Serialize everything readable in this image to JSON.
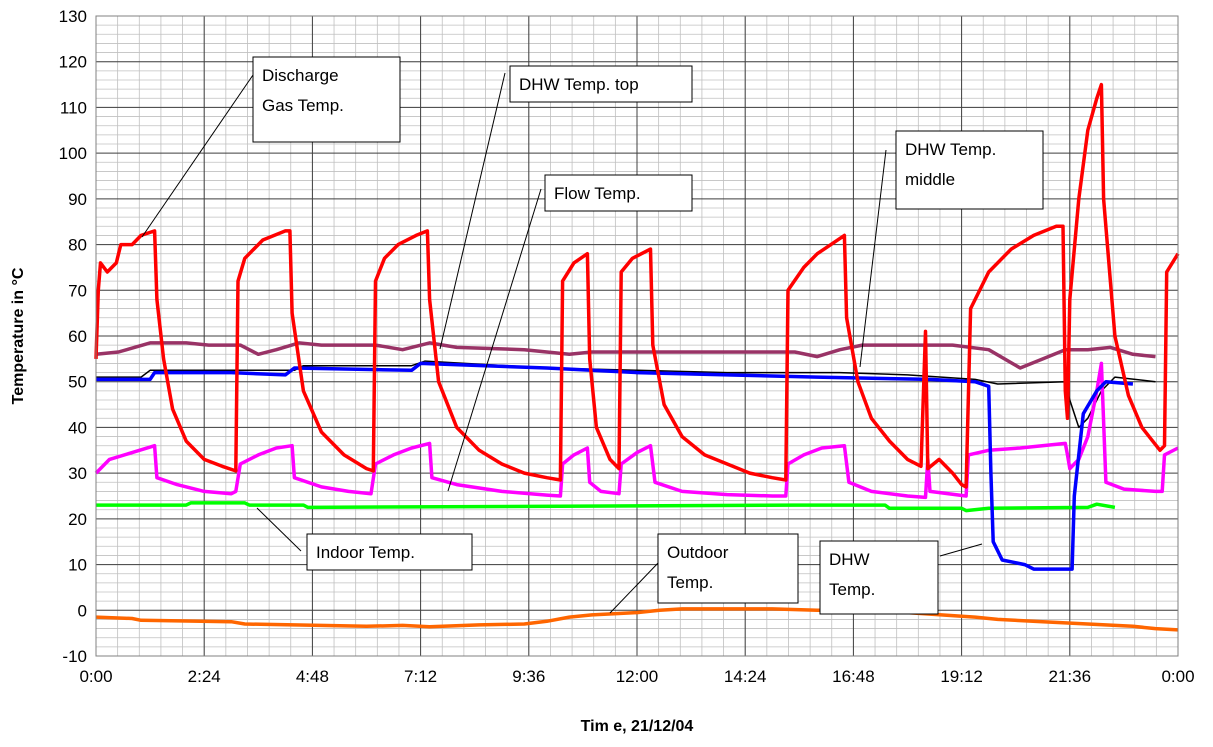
{
  "chart_data": {
    "type": "line",
    "title": "",
    "xlabel": "Tim e, 21/12/04",
    "ylabel": "Temperature in °C",
    "xlim_hours": [
      0,
      24
    ],
    "xtick_labels": [
      "0:00",
      "2:24",
      "4:48",
      "7:12",
      "9:36",
      "12:00",
      "14:24",
      "16:48",
      "19:12",
      "21:36",
      "0:00"
    ],
    "ylim": [
      -10,
      130
    ],
    "yticks": [
      -10,
      0,
      10,
      20,
      30,
      40,
      50,
      60,
      70,
      80,
      90,
      100,
      110,
      120,
      130
    ],
    "grid": true,
    "series": [
      {
        "name": "Discharge Gas Temp.",
        "color": "#ff0000",
        "points": [
          [
            0.0,
            55
          ],
          [
            0.05,
            70
          ],
          [
            0.1,
            76
          ],
          [
            0.25,
            74
          ],
          [
            0.45,
            76
          ],
          [
            0.55,
            80
          ],
          [
            0.8,
            80
          ],
          [
            1.0,
            82
          ],
          [
            1.3,
            83
          ],
          [
            1.35,
            68
          ],
          [
            1.5,
            55
          ],
          [
            1.7,
            44
          ],
          [
            2.0,
            37
          ],
          [
            2.4,
            33
          ],
          [
            2.8,
            31.5
          ],
          [
            3.1,
            30.5
          ],
          [
            3.15,
            72
          ],
          [
            3.3,
            77
          ],
          [
            3.7,
            81
          ],
          [
            4.2,
            83
          ],
          [
            4.3,
            83
          ],
          [
            4.35,
            65
          ],
          [
            4.6,
            48
          ],
          [
            5.0,
            39
          ],
          [
            5.5,
            34
          ],
          [
            6.0,
            31
          ],
          [
            6.15,
            30.5
          ],
          [
            6.2,
            72
          ],
          [
            6.4,
            77
          ],
          [
            6.7,
            80
          ],
          [
            7.1,
            82
          ],
          [
            7.35,
            83
          ],
          [
            7.4,
            68
          ],
          [
            7.6,
            50
          ],
          [
            8.0,
            40
          ],
          [
            8.5,
            35
          ],
          [
            9.0,
            32
          ],
          [
            9.5,
            30
          ],
          [
            10.0,
            29
          ],
          [
            10.3,
            28.5
          ],
          [
            10.35,
            72
          ],
          [
            10.6,
            76
          ],
          [
            10.9,
            78
          ],
          [
            10.95,
            55
          ],
          [
            11.1,
            40
          ],
          [
            11.4,
            33
          ],
          [
            11.6,
            31
          ],
          [
            11.65,
            74
          ],
          [
            11.9,
            77
          ],
          [
            12.1,
            78
          ],
          [
            12.3,
            79
          ],
          [
            12.35,
            58
          ],
          [
            12.6,
            45
          ],
          [
            13.0,
            38
          ],
          [
            13.5,
            34
          ],
          [
            14.0,
            32
          ],
          [
            14.5,
            30
          ],
          [
            15.0,
            29
          ],
          [
            15.3,
            28.5
          ],
          [
            15.35,
            70
          ],
          [
            15.7,
            75
          ],
          [
            16.0,
            78
          ],
          [
            16.3,
            80
          ],
          [
            16.6,
            82
          ],
          [
            16.65,
            64
          ],
          [
            16.9,
            50
          ],
          [
            17.2,
            42
          ],
          [
            17.6,
            37
          ],
          [
            18.0,
            33
          ],
          [
            18.3,
            31.5
          ],
          [
            18.4,
            61
          ],
          [
            18.45,
            31
          ],
          [
            18.7,
            33
          ],
          [
            19.0,
            30
          ],
          [
            19.2,
            27.5
          ],
          [
            19.3,
            27
          ],
          [
            19.4,
            66
          ],
          [
            19.8,
            74
          ],
          [
            20.3,
            79
          ],
          [
            20.8,
            82
          ],
          [
            21.3,
            84
          ],
          [
            21.45,
            84
          ],
          [
            21.5,
            48
          ],
          [
            21.55,
            42
          ],
          [
            21.6,
            68
          ],
          [
            21.8,
            90
          ],
          [
            22.0,
            105
          ],
          [
            22.2,
            112
          ],
          [
            22.3,
            115
          ],
          [
            22.35,
            90
          ],
          [
            22.6,
            60
          ],
          [
            22.9,
            47
          ],
          [
            23.2,
            40
          ],
          [
            23.6,
            35
          ],
          [
            23.7,
            36
          ],
          [
            23.75,
            74
          ],
          [
            24.0,
            78
          ],
          [
            24.5,
            81
          ],
          [
            24.8,
            83
          ],
          [
            25.0,
            83
          ]
        ]
      },
      {
        "name": "DHW Temp. top",
        "color": "#0000ff",
        "points": [
          [
            0.0,
            50.5
          ],
          [
            1.2,
            50.5
          ],
          [
            1.3,
            52
          ],
          [
            3.0,
            52
          ],
          [
            4.2,
            51.5
          ],
          [
            4.4,
            53
          ],
          [
            7.0,
            52.5
          ],
          [
            7.2,
            54
          ],
          [
            10.0,
            53
          ],
          [
            12.0,
            52
          ],
          [
            14.0,
            51.5
          ],
          [
            16.0,
            51
          ],
          [
            18.5,
            50.5
          ],
          [
            19.5,
            50
          ],
          [
            19.8,
            49
          ],
          [
            19.85,
            30
          ],
          [
            19.9,
            15
          ],
          [
            20.1,
            11
          ],
          [
            20.6,
            10
          ],
          [
            20.8,
            9
          ],
          [
            21.5,
            9
          ],
          [
            21.65,
            9
          ],
          [
            21.7,
            25
          ],
          [
            21.9,
            43
          ],
          [
            22.2,
            48
          ],
          [
            22.4,
            50
          ],
          [
            23.0,
            49.5
          ],
          [
            25.0,
            49.5
          ]
        ]
      },
      {
        "name": "DHW Temp. middle",
        "color": "#993366",
        "points": [
          [
            0.0,
            56
          ],
          [
            0.5,
            56.5
          ],
          [
            1.2,
            58.5
          ],
          [
            2.0,
            58.5
          ],
          [
            2.5,
            58
          ],
          [
            3.2,
            58
          ],
          [
            3.6,
            56
          ],
          [
            4.0,
            57
          ],
          [
            4.5,
            58.5
          ],
          [
            5.0,
            58
          ],
          [
            6.2,
            58
          ],
          [
            6.8,
            57
          ],
          [
            7.4,
            58.5
          ],
          [
            8.0,
            57.5
          ],
          [
            9.5,
            57
          ],
          [
            10.5,
            56
          ],
          [
            11.0,
            56.5
          ],
          [
            12.0,
            56.5
          ],
          [
            14.0,
            56.5
          ],
          [
            15.5,
            56.5
          ],
          [
            16.0,
            55.5
          ],
          [
            16.5,
            57
          ],
          [
            17.0,
            58
          ],
          [
            19.0,
            58
          ],
          [
            19.8,
            57
          ],
          [
            20.5,
            53
          ],
          [
            21.0,
            55
          ],
          [
            21.5,
            57
          ],
          [
            22.0,
            57
          ],
          [
            22.5,
            57.5
          ],
          [
            23.0,
            56
          ],
          [
            23.5,
            55.5
          ],
          [
            24.2,
            56
          ],
          [
            24.8,
            58
          ],
          [
            25.0,
            56.5
          ]
        ]
      },
      {
        "name": "DHW Temp.",
        "color": "#000000",
        "points": [
          [
            0.0,
            51
          ],
          [
            1.0,
            51
          ],
          [
            1.2,
            52.5
          ],
          [
            3.0,
            52.5
          ],
          [
            4.4,
            52.5
          ],
          [
            4.6,
            53.5
          ],
          [
            7.0,
            53.5
          ],
          [
            7.3,
            54.5
          ],
          [
            10.0,
            53
          ],
          [
            12.0,
            52.5
          ],
          [
            14.0,
            52
          ],
          [
            16.5,
            52
          ],
          [
            18.0,
            51.5
          ],
          [
            19.5,
            50.5
          ],
          [
            20.0,
            49.5
          ],
          [
            21.5,
            50
          ],
          [
            21.6,
            46
          ],
          [
            21.8,
            40
          ],
          [
            22.0,
            42
          ],
          [
            22.3,
            48
          ],
          [
            22.6,
            51
          ],
          [
            23.5,
            50
          ],
          [
            24.5,
            50.5
          ],
          [
            25.0,
            51
          ]
        ]
      },
      {
        "name": "Flow Temp.",
        "color": "#ff00ff",
        "points": [
          [
            0.0,
            30
          ],
          [
            0.3,
            33
          ],
          [
            0.8,
            34.5
          ],
          [
            1.3,
            36
          ],
          [
            1.35,
            29
          ],
          [
            1.8,
            27.5
          ],
          [
            2.4,
            26
          ],
          [
            3.0,
            25.5
          ],
          [
            3.1,
            26
          ],
          [
            3.2,
            32
          ],
          [
            3.6,
            34
          ],
          [
            4.0,
            35.5
          ],
          [
            4.35,
            36
          ],
          [
            4.4,
            29
          ],
          [
            5.0,
            27
          ],
          [
            5.6,
            26
          ],
          [
            6.1,
            25.5
          ],
          [
            6.2,
            32
          ],
          [
            6.6,
            34
          ],
          [
            7.0,
            35.5
          ],
          [
            7.4,
            36.5
          ],
          [
            7.45,
            29
          ],
          [
            8.0,
            27.5
          ],
          [
            9.0,
            26
          ],
          [
            10.0,
            25.2
          ],
          [
            10.3,
            25
          ],
          [
            10.35,
            32
          ],
          [
            10.6,
            34
          ],
          [
            10.9,
            35.5
          ],
          [
            10.95,
            28
          ],
          [
            11.2,
            26
          ],
          [
            11.6,
            25.5
          ],
          [
            11.65,
            32
          ],
          [
            12.0,
            34.5
          ],
          [
            12.3,
            36
          ],
          [
            12.4,
            28
          ],
          [
            13.0,
            26
          ],
          [
            14.0,
            25.3
          ],
          [
            15.0,
            25
          ],
          [
            15.3,
            25
          ],
          [
            15.35,
            32
          ],
          [
            15.7,
            34
          ],
          [
            16.1,
            35.5
          ],
          [
            16.6,
            36
          ],
          [
            16.7,
            28
          ],
          [
            17.2,
            26
          ],
          [
            18.0,
            25
          ],
          [
            18.4,
            24.7
          ],
          [
            18.45,
            33
          ],
          [
            18.5,
            26
          ],
          [
            19.3,
            25
          ],
          [
            19.35,
            34
          ],
          [
            19.8,
            35
          ],
          [
            20.5,
            35.5
          ],
          [
            21.5,
            36.5
          ],
          [
            21.55,
            34
          ],
          [
            21.6,
            31
          ],
          [
            21.8,
            33
          ],
          [
            22.0,
            38
          ],
          [
            22.2,
            48
          ],
          [
            22.3,
            54
          ],
          [
            22.4,
            28
          ],
          [
            22.8,
            26.5
          ],
          [
            23.5,
            26
          ],
          [
            23.65,
            26
          ],
          [
            23.7,
            34
          ],
          [
            24.0,
            35.5
          ],
          [
            24.8,
            36
          ],
          [
            25.0,
            31
          ]
        ]
      },
      {
        "name": "Indoor Temp.",
        "color": "#00ff00",
        "points": [
          [
            0.0,
            23
          ],
          [
            2.0,
            23
          ],
          [
            2.1,
            23.5
          ],
          [
            3.3,
            23.5
          ],
          [
            3.4,
            23
          ],
          [
            4.6,
            23
          ],
          [
            4.7,
            22.5
          ],
          [
            15.5,
            23
          ],
          [
            17.5,
            23
          ],
          [
            17.6,
            22.3
          ],
          [
            19.2,
            22.3
          ],
          [
            19.3,
            21.8
          ],
          [
            19.8,
            22.3
          ],
          [
            22.0,
            22.5
          ],
          [
            22.2,
            23.2
          ],
          [
            22.6,
            22.5
          ],
          [
            25.0,
            22.5
          ]
        ]
      },
      {
        "name": "Outdoor Temp.",
        "color": "#ff6600",
        "points": [
          [
            0.0,
            -1.5
          ],
          [
            0.8,
            -1.8
          ],
          [
            1.0,
            -2.2
          ],
          [
            3.0,
            -2.5
          ],
          [
            3.3,
            -3
          ],
          [
            6.0,
            -3.5
          ],
          [
            6.8,
            -3.3
          ],
          [
            7.4,
            -3.6
          ],
          [
            8.5,
            -3.2
          ],
          [
            9.5,
            -3
          ],
          [
            10.0,
            -2.4
          ],
          [
            10.5,
            -1.5
          ],
          [
            11.0,
            -1
          ],
          [
            12.0,
            -0.5
          ],
          [
            12.5,
            0
          ],
          [
            13.0,
            0.3
          ],
          [
            14.0,
            0.3
          ],
          [
            15.0,
            0.3
          ],
          [
            16.0,
            0
          ],
          [
            17.0,
            0
          ],
          [
            18.0,
            -0.5
          ],
          [
            19.5,
            -1.5
          ],
          [
            20.0,
            -2
          ],
          [
            21.0,
            -2.5
          ],
          [
            22.0,
            -3
          ],
          [
            23.0,
            -3.5
          ],
          [
            23.5,
            -4
          ],
          [
            24.0,
            -4.3
          ],
          [
            24.95,
            -4.3
          ],
          [
            25.0,
            -1.5
          ]
        ]
      }
    ],
    "annotations": [
      {
        "key": "discharge",
        "lines": [
          "Discharge",
          "Gas Temp."
        ]
      },
      {
        "key": "dhw_top",
        "lines": [
          "DHW Temp. top"
        ]
      },
      {
        "key": "flow",
        "lines": [
          "Flow  Temp."
        ]
      },
      {
        "key": "dhw_middle",
        "lines": [
          "DHW Temp.",
          "middle"
        ]
      },
      {
        "key": "indoor",
        "lines": [
          "Indoor Temp."
        ]
      },
      {
        "key": "outdoor",
        "lines": [
          "Outdoor",
          "Temp."
        ]
      },
      {
        "key": "dhw",
        "lines": [
          "DHW",
          "Temp."
        ]
      }
    ]
  }
}
